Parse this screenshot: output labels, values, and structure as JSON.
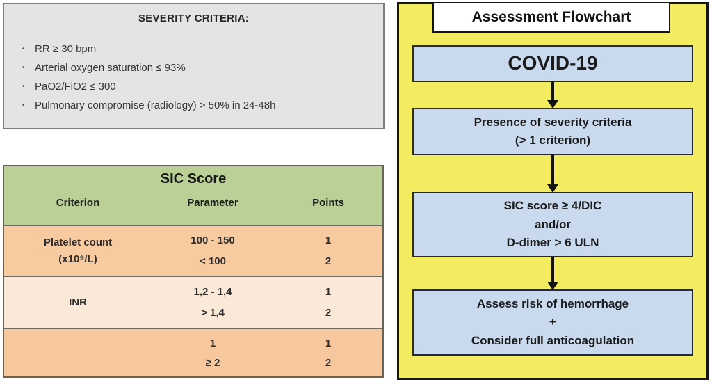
{
  "severity": {
    "title": "SEVERITY CRITERIA:",
    "bullets": [
      "RR ≥ 30 bpm",
      "Arterial oxygen saturation ≤ 93%",
      "PaO2/FiO2 ≤ 300",
      "Pulmonary compromise (radiology) > 50% in 24-48h"
    ]
  },
  "sic_table": {
    "title": "SIC Score",
    "columns": [
      "Criterion",
      "Parameter",
      "Points"
    ],
    "rows": [
      {
        "criterion": "Platelet count",
        "criterion_sub": "(x10⁹/L)",
        "entries": [
          {
            "parameter": "100 - 150",
            "points": "1"
          },
          {
            "parameter": "< 100",
            "points": "2"
          }
        ]
      },
      {
        "criterion": "INR",
        "criterion_sub": "",
        "entries": [
          {
            "parameter": "1,2 - 1,4",
            "points": "1"
          },
          {
            "parameter": "> 1,4",
            "points": "2"
          }
        ]
      },
      {
        "criterion": "",
        "criterion_sub": "",
        "entries": [
          {
            "parameter": "1",
            "points": "1"
          },
          {
            "parameter": "≥ 2",
            "points": "2"
          }
        ]
      }
    ]
  },
  "flowchart": {
    "title": "Assessment Flowchart",
    "nodes": [
      {
        "lines": [
          "COVID-19"
        ]
      },
      {
        "lines": [
          "Presence of severity criteria",
          "(> 1 criterion)"
        ]
      },
      {
        "lines": [
          "SIC score ≥ 4/DIC",
          "and/or",
          "D-dimer > 6 ULN"
        ]
      },
      {
        "lines": [
          "Assess risk of hemorrhage",
          "+",
          "Consider full anticoagulation"
        ]
      }
    ]
  },
  "colors": {
    "severity_panel_gray": "#e4e4e4",
    "table_header_green": "#bbd096",
    "table_row_peach": "#f7caa0",
    "table_row_light_peach": "#fae8d8",
    "flowchart_yellow": "#f4ec60",
    "flow_node_blue": "#c9daee"
  }
}
